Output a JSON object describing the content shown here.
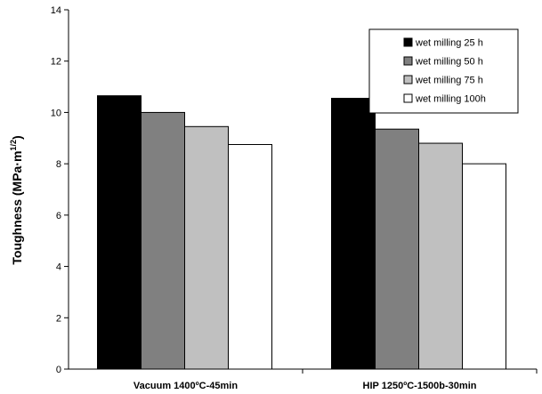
{
  "chart_data": {
    "type": "bar",
    "title": "",
    "xlabel": "",
    "ylabel": "Toughness (MPa·m",
    "ylabel_sup": "1/2",
    "ylabel_close": ")",
    "ylim": [
      0,
      14
    ],
    "yticks": [
      "0",
      "2",
      "4",
      "6",
      "8",
      "10",
      "12",
      "14"
    ],
    "grid": false,
    "legend_position": "top-right",
    "categories": [
      "Vacuum 1400ºC-45min",
      "HIP 1250ºC-1500b-30min"
    ],
    "series": [
      {
        "name": "wet milling 25 h",
        "color": "#000000",
        "values": [
          10.65,
          10.55
        ]
      },
      {
        "name": "wet milling 50 h",
        "color": "#808080",
        "values": [
          10.0,
          9.35
        ]
      },
      {
        "name": "wet milling 75 h",
        "color": "#c0c0c0",
        "values": [
          9.45,
          8.8
        ]
      },
      {
        "name": "wet milling 100h",
        "color": "#ffffff",
        "values": [
          8.75,
          8.0
        ]
      }
    ]
  }
}
